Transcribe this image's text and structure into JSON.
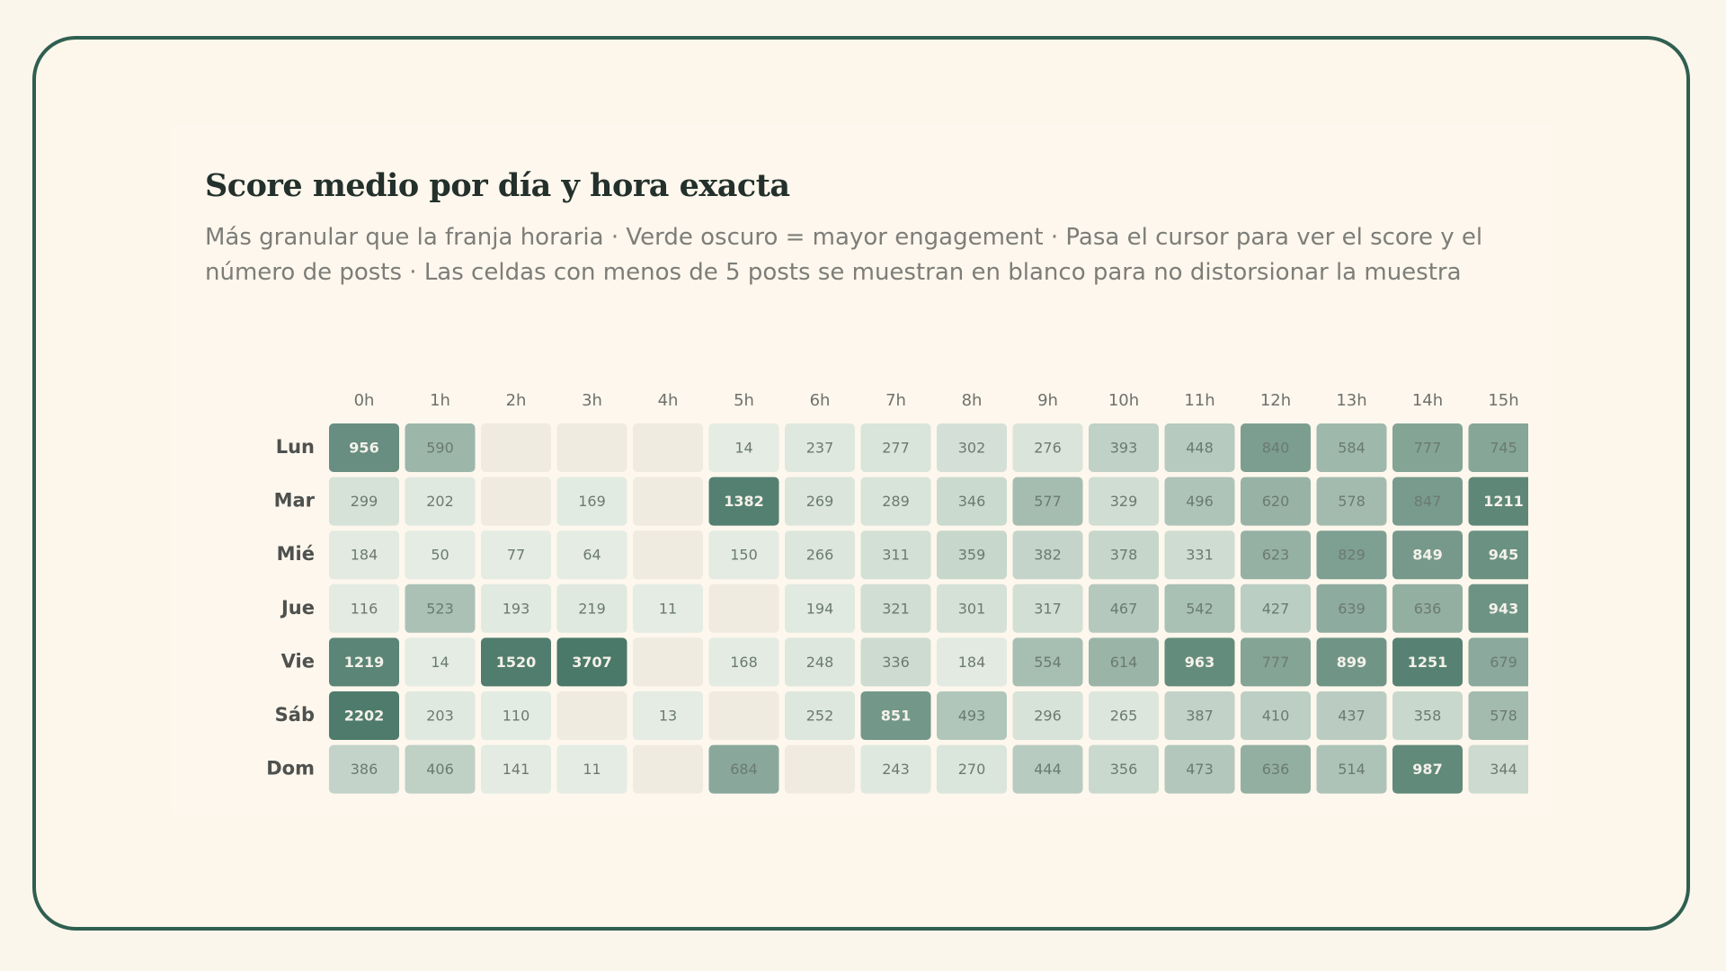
{
  "chart_data": {
    "type": "heatmap",
    "title": "Score medio por día y hora exacta",
    "subtitle": "Más granular que la franja horaria · Verde oscuro = mayor engagement · Pasa el cursor para ver el score y el número de posts · Las celdas con menos de 5 posts se muestran en blanco para no distorsionar la muestra",
    "categories": [
      "0h",
      "1h",
      "2h",
      "3h",
      "4h",
      "5h",
      "6h",
      "7h",
      "8h",
      "9h",
      "10h",
      "11h",
      "12h",
      "13h",
      "14h",
      "15h"
    ],
    "rows": [
      "Lun",
      "Mar",
      "Mié",
      "Jue",
      "Vie",
      "Sáb",
      "Dom"
    ],
    "values": [
      [
        956,
        590,
        null,
        null,
        null,
        14,
        237,
        277,
        302,
        276,
        393,
        448,
        840,
        584,
        777,
        745
      ],
      [
        299,
        202,
        null,
        169,
        null,
        1382,
        269,
        289,
        346,
        577,
        329,
        496,
        620,
        578,
        847,
        1211
      ],
      [
        184,
        50,
        77,
        64,
        null,
        150,
        266,
        311,
        359,
        382,
        378,
        331,
        623,
        829,
        849,
        945
      ],
      [
        116,
        523,
        193,
        219,
        11,
        null,
        194,
        321,
        301,
        317,
        467,
        542,
        427,
        639,
        636,
        943
      ],
      [
        1219,
        14,
        1520,
        3707,
        null,
        168,
        248,
        336,
        184,
        554,
        614,
        963,
        777,
        899,
        1251,
        679
      ],
      [
        2202,
        203,
        110,
        null,
        13,
        null,
        252,
        851,
        493,
        296,
        265,
        387,
        410,
        437,
        358,
        578
      ],
      [
        386,
        406,
        141,
        11,
        null,
        684,
        null,
        243,
        270,
        444,
        356,
        473,
        636,
        514,
        987,
        344
      ]
    ],
    "low_color": "#e4ece3",
    "high_color": "#2f6453",
    "empty_color": "#efebe1"
  }
}
